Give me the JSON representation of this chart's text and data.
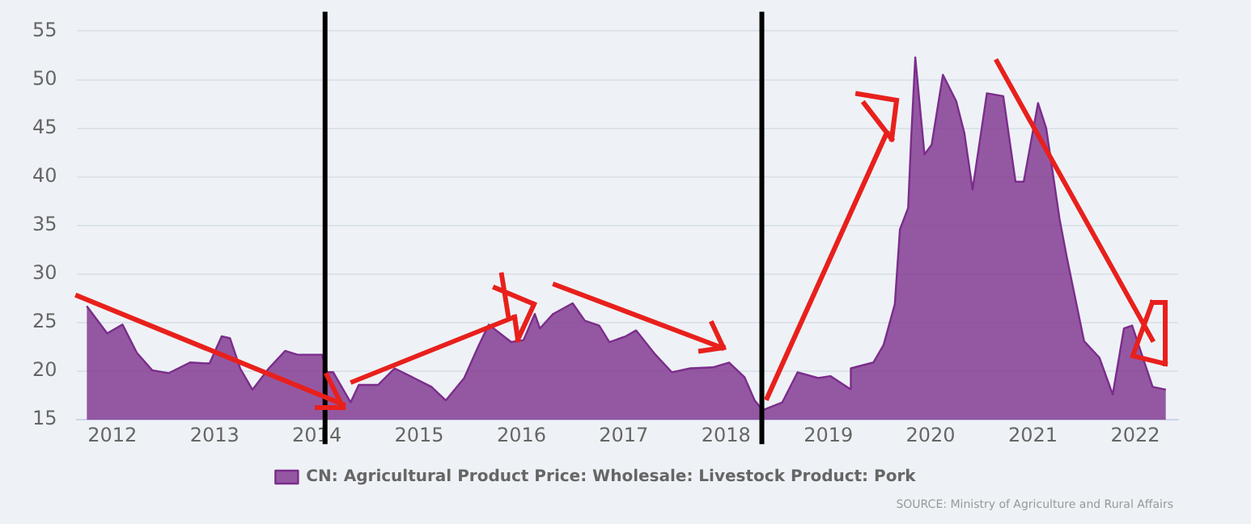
{
  "chart_data": {
    "type": "area",
    "x": [
      2011.75,
      2011.95,
      2012.1,
      2012.24,
      2012.39,
      2012.55,
      2012.76,
      2012.95,
      2013.07,
      2013.15,
      2013.25,
      2013.37,
      2013.53,
      2013.69,
      2013.81,
      2014.05,
      2014.1,
      2014.16,
      2014.33,
      2014.41,
      2014.6,
      2014.76,
      2014.95,
      2015.12,
      2015.26,
      2015.44,
      2015.58,
      2015.68,
      2015.9,
      2016.02,
      2016.13,
      2016.18,
      2016.31,
      2016.5,
      2016.62,
      2016.76,
      2016.86,
      2017.02,
      2017.12,
      2017.31,
      2017.47,
      2017.65,
      2017.87,
      2018.03,
      2018.18,
      2018.28,
      2018.36,
      2018.55,
      2018.7,
      2018.9,
      2019.02,
      2019.21,
      2019.22,
      2019.44,
      2019.54,
      2019.65,
      2019.7,
      2019.78,
      2019.81,
      2019.85,
      2019.89,
      2019.94,
      2020.01,
      2020.12,
      2020.25,
      2020.33,
      2020.41,
      2020.55,
      2020.71,
      2020.83,
      2020.91,
      2021.05,
      2021.13,
      2021.26,
      2021.33,
      2021.5,
      2021.65,
      2021.78,
      2021.89,
      2021.97,
      2022.17,
      2022.3
    ],
    "series": [
      {
        "name": "CN: Agricultural Product Price: Wholesale: Livestock Product: Pork",
        "color": "#7b2d8b",
        "values": [
          26.7,
          23.9,
          24.8,
          21.9,
          20.1,
          19.8,
          20.9,
          20.8,
          23.6,
          23.4,
          20.3,
          18.1,
          20.3,
          22.1,
          21.7,
          21.7,
          19.9,
          19.9,
          16.8,
          18.6,
          18.6,
          20.3,
          19.3,
          18.4,
          17.0,
          19.3,
          22.6,
          24.8,
          23.0,
          23.2,
          25.9,
          24.4,
          25.9,
          27.0,
          25.2,
          24.7,
          23.0,
          23.6,
          24.2,
          21.7,
          19.9,
          20.3,
          20.4,
          20.9,
          19.4,
          17.0,
          16.0,
          16.8,
          19.9,
          19.3,
          19.5,
          18.2,
          20.3,
          20.9,
          22.7,
          26.9,
          34.6,
          36.8,
          44.0,
          52.3,
          47.8,
          42.3,
          43.3,
          50.5,
          47.8,
          44.5,
          38.7,
          48.6,
          48.3,
          39.5,
          39.5,
          47.6,
          45.0,
          35.7,
          31.8,
          23.1,
          21.4,
          17.6,
          24.4,
          24.7,
          18.4,
          18.1
        ]
      }
    ],
    "xlim": [
      2011.65,
      2022.42
    ],
    "xticks": [
      2012,
      2013,
      2014,
      2015,
      2016,
      2017,
      2018,
      2019,
      2020,
      2021,
      2022
    ],
    "ylim": [
      15,
      55
    ],
    "yticks": [
      15,
      20,
      25,
      30,
      35,
      40,
      45,
      50,
      55
    ],
    "grid": "y",
    "legend": "bottom",
    "ref_lines": [
      {
        "axis": "x",
        "value": 2014.08,
        "color": "#000000"
      },
      {
        "axis": "x",
        "value": 2018.35,
        "color": "#000000"
      }
    ],
    "annotations": [
      "SOURCE: Ministry of Agriculture and Rural Affairs"
    ]
  }
}
